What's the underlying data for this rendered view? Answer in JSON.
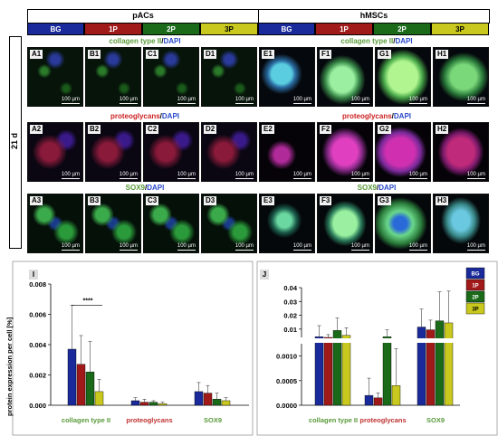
{
  "header": {
    "group_left": "pACs",
    "group_right": "hMSCs",
    "time_label": "21 d"
  },
  "conditions": [
    "BG",
    "1P",
    "2P",
    "3P"
  ],
  "condition_colors": {
    "BG": "#1a2a9a",
    "1P": "#a01a1a",
    "2P": "#1a6a1a",
    "3P": "#c8c81e"
  },
  "stains": {
    "row1": {
      "protein": "collagen type II",
      "sep": "/",
      "dapi": "DAPI"
    },
    "row2": {
      "protein": "proteoglycans",
      "sep": "/",
      "dapi": "DAPI"
    },
    "row3": {
      "protein": "SOX9",
      "sep": "/",
      "dapi": "DAPI"
    }
  },
  "scale_text": "100 µm",
  "panels": {
    "row1": [
      "A1",
      "B1",
      "C1",
      "D1",
      "E1",
      "F1",
      "G1",
      "H1"
    ],
    "row2": [
      "A2",
      "B2",
      "C2",
      "D2",
      "E2",
      "F2",
      "G2",
      "H2"
    ],
    "row3": [
      "A3",
      "B3",
      "C3",
      "D3",
      "E3",
      "F3",
      "G3",
      "H3"
    ]
  },
  "chart_I": {
    "panel_label": "I",
    "ylabel": "protein expression per cell [%]",
    "significance": "****"
  },
  "chart_J": {
    "panel_label": "J"
  },
  "chart_data": [
    {
      "type": "bar",
      "panel": "I",
      "categories": [
        "collagen type II",
        "proteoglycans",
        "SOX9"
      ],
      "category_colors": [
        "#5a9a3a",
        "#c03030",
        "#5a9a3a"
      ],
      "series": [
        {
          "name": "BG",
          "values": [
            0.0037,
            0.0003,
            0.0009
          ],
          "errors": [
            0.0029,
            0.0002,
            0.0006
          ]
        },
        {
          "name": "1P",
          "values": [
            0.0027,
            0.0002,
            0.0008
          ],
          "errors": [
            0.0019,
            0.0002,
            0.0005
          ]
        },
        {
          "name": "2P",
          "values": [
            0.0022,
            0.0002,
            0.0004
          ],
          "errors": [
            0.002,
            0.0001,
            0.0004
          ]
        },
        {
          "name": "3P",
          "values": [
            0.0009,
            0.0001,
            0.0003
          ],
          "errors": [
            0.0008,
            0.0001,
            0.0002
          ]
        }
      ],
      "ylim": [
        0,
        0.008
      ],
      "yticks": [
        "0.000",
        "0.002",
        "0.004",
        "0.006",
        "0.008"
      ],
      "ylabel": "protein expression per cell [%]"
    },
    {
      "type": "bar",
      "panel": "J",
      "broken_axis": true,
      "categories": [
        "collagen type II",
        "proteoglycans",
        "SOX9"
      ],
      "category_colors": [
        "#5a9a3a",
        "#c03030",
        "#5a9a3a"
      ],
      "legend": [
        "BG",
        "1P",
        "2P",
        "3P"
      ],
      "legend_position": "top-right",
      "series": [
        {
          "name": "BG",
          "values": [
            0.0045,
            0.0002,
            0.0115
          ],
          "errors": [
            0.008,
            0.00035,
            0.013
          ]
        },
        {
          "name": "1P",
          "values": [
            0.003,
            0.00015,
            0.0095
          ],
          "errors": [
            0.003,
            0.0001,
            0.007
          ]
        },
        {
          "name": "2P",
          "values": [
            0.009,
            0.0045,
            0.016
          ],
          "errors": [
            0.009,
            0.005,
            0.021
          ]
        },
        {
          "name": "3P",
          "values": [
            0.0055,
            0.0004,
            0.0145
          ],
          "errors": [
            0.0055,
            0.00075,
            0.023
          ]
        }
      ],
      "yticks_top": [
        "0.01",
        "0.02",
        "0.03",
        "0.04"
      ],
      "ylim_top": [
        0.004,
        0.04
      ],
      "yticks_bottom": [
        "0.0000",
        "0.0005",
        "0.0010"
      ],
      "ylim_bottom": [
        0,
        0.00125
      ]
    }
  ]
}
